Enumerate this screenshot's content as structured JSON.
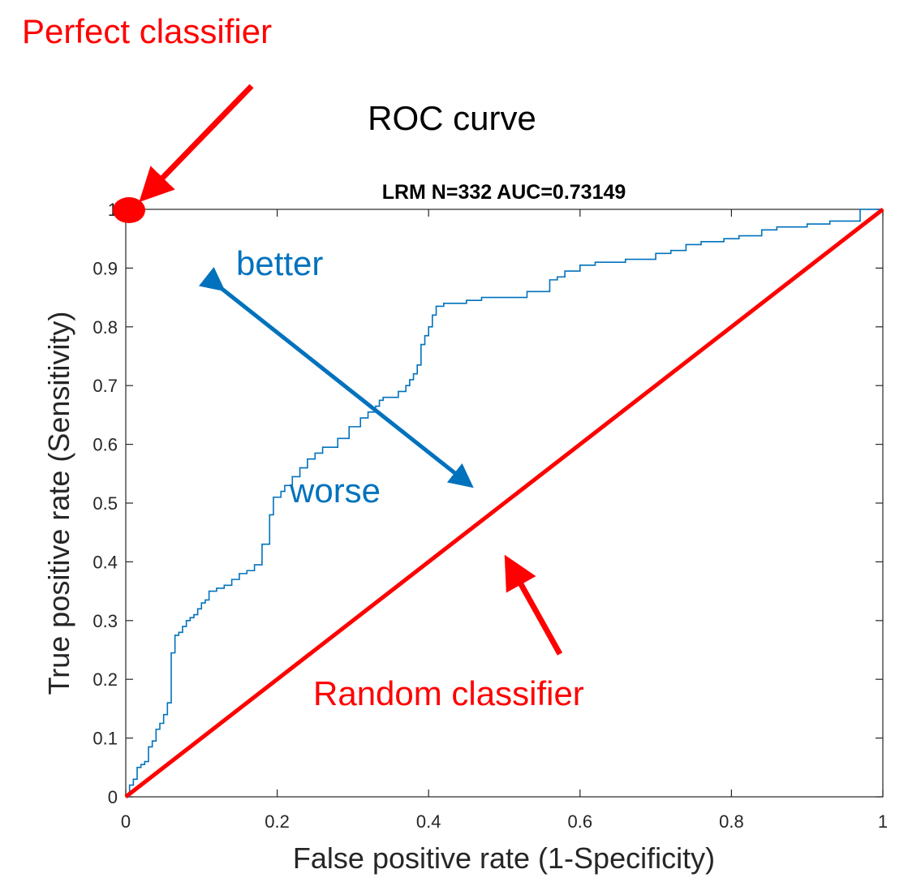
{
  "chart_data": {
    "type": "line",
    "title": "ROC curve",
    "subtitle": "LRM N=332 AUC=0.73149",
    "xlabel": "False positive rate (1-Specificity)",
    "ylabel": "True positive rate (Sensitivity)",
    "xlim": [
      0,
      1
    ],
    "ylim": [
      0,
      1
    ],
    "xticks": [
      0,
      0.2,
      0.4,
      0.6,
      0.8,
      1
    ],
    "xtick_labels": [
      "0",
      "0.2",
      "0.4",
      "0.6",
      "0.8",
      "1"
    ],
    "yticks": [
      0,
      0.1,
      0.2,
      0.3,
      0.4,
      0.5,
      0.6,
      0.7,
      0.8,
      0.9,
      1
    ],
    "ytick_labels": [
      "0",
      "0.1",
      "0.2",
      "0.3",
      "0.4",
      "0.5",
      "0.6",
      "0.7",
      "0.8",
      "0.9",
      "1"
    ],
    "grid": false,
    "series": [
      {
        "color": "#0072BD",
        "style": "step",
        "x": [
          0,
          0.005,
          0.01,
          0.015,
          0.02,
          0.025,
          0.03,
          0.035,
          0.04,
          0.045,
          0.05,
          0.055,
          0.06,
          0.065,
          0.07,
          0.075,
          0.08,
          0.085,
          0.09,
          0.095,
          0.1,
          0.105,
          0.11,
          0.115,
          0.12,
          0.13,
          0.14,
          0.15,
          0.16,
          0.17,
          0.18,
          0.19,
          0.195,
          0.2,
          0.205,
          0.21,
          0.22,
          0.23,
          0.24,
          0.25,
          0.26,
          0.27,
          0.28,
          0.295,
          0.31,
          0.32,
          0.33,
          0.335,
          0.34,
          0.35,
          0.36,
          0.37,
          0.375,
          0.38,
          0.385,
          0.39,
          0.395,
          0.4,
          0.405,
          0.41,
          0.42,
          0.43,
          0.44,
          0.45,
          0.47,
          0.5,
          0.53,
          0.56,
          0.57,
          0.58,
          0.6,
          0.62,
          0.66,
          0.7,
          0.72,
          0.74,
          0.76,
          0.79,
          0.81,
          0.84,
          0.86,
          0.88,
          0.9,
          0.93,
          0.97,
          1
        ],
        "y": [
          0,
          0.02,
          0.03,
          0.05,
          0.055,
          0.06,
          0.085,
          0.095,
          0.115,
          0.125,
          0.14,
          0.16,
          0.245,
          0.275,
          0.28,
          0.29,
          0.3,
          0.305,
          0.31,
          0.32,
          0.33,
          0.335,
          0.35,
          0.35,
          0.355,
          0.36,
          0.37,
          0.38,
          0.385,
          0.395,
          0.43,
          0.48,
          0.51,
          0.51,
          0.52,
          0.53,
          0.545,
          0.56,
          0.575,
          0.585,
          0.595,
          0.595,
          0.61,
          0.63,
          0.645,
          0.655,
          0.665,
          0.675,
          0.68,
          0.68,
          0.69,
          0.7,
          0.71,
          0.72,
          0.735,
          0.77,
          0.785,
          0.8,
          0.82,
          0.835,
          0.84,
          0.84,
          0.84,
          0.845,
          0.85,
          0.85,
          0.86,
          0.88,
          0.885,
          0.895,
          0.905,
          0.91,
          0.915,
          0.925,
          0.93,
          0.94,
          0.945,
          0.95,
          0.955,
          0.965,
          0.97,
          0.97,
          0.975,
          0.98,
          1,
          1
        ]
      },
      {
        "color": "#000000",
        "style": "line",
        "x": [
          0,
          1
        ],
        "y": [
          0,
          1
        ]
      },
      {
        "color": "#FF0000",
        "style": "line",
        "x": [
          0,
          1
        ],
        "y": [
          0,
          1
        ]
      }
    ],
    "annotations": [
      {
        "text": "Perfect classifier",
        "color": "#FF0000"
      },
      {
        "text": "better",
        "color": "#0072BD"
      },
      {
        "text": "worse",
        "color": "#0072BD"
      },
      {
        "text": "Random classifier",
        "color": "#FF0000"
      }
    ]
  }
}
